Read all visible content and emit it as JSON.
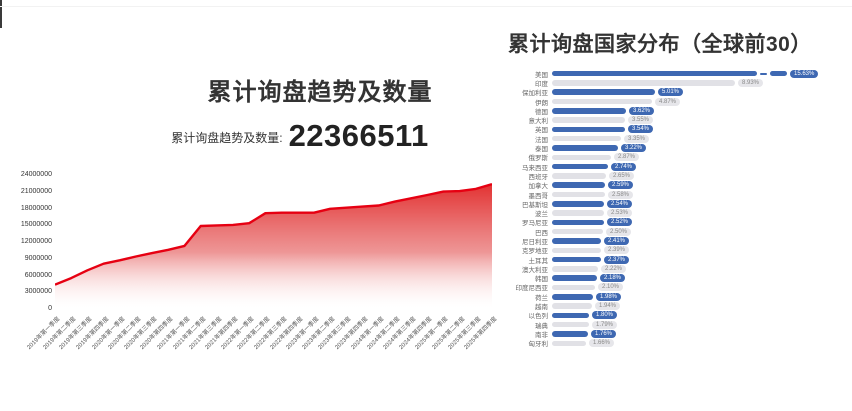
{
  "left_chart": {
    "title": "累计询盘趋势及数量",
    "stat_label": "累计询盘趋势及数量:",
    "stat_value": "22366511"
  },
  "right_chart": {
    "title": "累计询盘国家分布（全球前30）"
  },
  "colors": {
    "trend_line": "#e60012",
    "trend_fill_top": "#e02020",
    "bar_blue": "#3e68b2",
    "bar_gray": "#e1e1e6"
  },
  "chart_data": [
    {
      "type": "area",
      "title": "累计询盘趋势及数量",
      "xlabel": "",
      "ylabel": "",
      "ylim": [
        0,
        24000000
      ],
      "yticks": [
        "24000000",
        "21000000",
        "18000000",
        "15000000",
        "12000000",
        "9000000",
        "6000000",
        "3000000",
        "0"
      ],
      "x": [
        "2019年第一季度",
        "2019年第二季度",
        "2019年第三季度",
        "2019年第四季度",
        "2020年第一季度",
        "2020年第二季度",
        "2020年第三季度",
        "2020年第四季度",
        "2021年第一季度",
        "2021年第二季度",
        "2021年第三季度",
        "2021年第四季度",
        "2022年第一季度",
        "2022年第二季度",
        "2022年第三季度",
        "2022年第四季度",
        "2023年第一季度",
        "2023年第二季度",
        "2023年第三季度",
        "2023年第四季度",
        "2024年第一季度",
        "2024年第二季度",
        "2024年第三季度",
        "2024年第四季度",
        "2025年第一季度",
        "2025年第二季度",
        "2025年第三季度",
        "2025年第四季度"
      ],
      "values": [
        4200000,
        5400000,
        6800000,
        8000000,
        8600000,
        9300000,
        9900000,
        10500000,
        11200000,
        14800000,
        14900000,
        15000000,
        15300000,
        17100000,
        17200000,
        17200000,
        17200000,
        17900000,
        18100000,
        18300000,
        18500000,
        19200000,
        19800000,
        20400000,
        21000000,
        21100000,
        21500000,
        22366511
      ],
      "grid": false,
      "legend": false
    },
    {
      "type": "bar",
      "orientation": "horizontal",
      "title": "累计询盘国家分布（全球前30）",
      "unit": "%",
      "rows": [
        {
          "label": "美国",
          "value": 15.63,
          "display": "15.63%",
          "style": "blue",
          "axis_break": true
        },
        {
          "label": "印度",
          "value": 8.93,
          "display": "8.93%",
          "style": "gray"
        },
        {
          "label": "保加利亚",
          "value": 5.01,
          "display": "5.01%",
          "style": "blue"
        },
        {
          "label": "伊朗",
          "value": 4.87,
          "display": "4.87%",
          "style": "gray"
        },
        {
          "label": "德国",
          "value": 3.62,
          "display": "3.62%",
          "style": "blue"
        },
        {
          "label": "意大利",
          "value": 3.55,
          "display": "3.55%",
          "style": "gray"
        },
        {
          "label": "英国",
          "value": 3.54,
          "display": "3.54%",
          "style": "blue"
        },
        {
          "label": "法国",
          "value": 3.35,
          "display": "3.35%",
          "style": "gray"
        },
        {
          "label": "泰国",
          "value": 3.22,
          "display": "3.22%",
          "style": "blue"
        },
        {
          "label": "俄罗斯",
          "value": 2.87,
          "display": "2.87%",
          "style": "gray"
        },
        {
          "label": "马来西亚",
          "value": 2.74,
          "display": "2.74%",
          "style": "blue"
        },
        {
          "label": "西班牙",
          "value": 2.65,
          "display": "2.65%",
          "style": "gray"
        },
        {
          "label": "加拿大",
          "value": 2.59,
          "display": "2.59%",
          "style": "blue"
        },
        {
          "label": "墨西哥",
          "value": 2.58,
          "display": "2.58%",
          "style": "gray"
        },
        {
          "label": "巴基斯坦",
          "value": 2.54,
          "display": "2.54%",
          "style": "blue"
        },
        {
          "label": "波兰",
          "value": 2.53,
          "display": "2.53%",
          "style": "gray"
        },
        {
          "label": "罗马尼亚",
          "value": 2.52,
          "display": "2.52%",
          "style": "blue"
        },
        {
          "label": "巴西",
          "value": 2.5,
          "display": "2.50%",
          "style": "gray"
        },
        {
          "label": "尼日利亚",
          "value": 2.41,
          "display": "2.41%",
          "style": "blue"
        },
        {
          "label": "克罗地亚",
          "value": 2.39,
          "display": "2.39%",
          "style": "gray"
        },
        {
          "label": "土耳其",
          "value": 2.37,
          "display": "2.37%",
          "style": "blue"
        },
        {
          "label": "澳大利亚",
          "value": 2.22,
          "display": "2.22%",
          "style": "gray"
        },
        {
          "label": "韩国",
          "value": 2.18,
          "display": "2.18%",
          "style": "blue"
        },
        {
          "label": "印度尼西亚",
          "value": 2.1,
          "display": "2.10%",
          "style": "gray"
        },
        {
          "label": "荷兰",
          "value": 1.98,
          "display": "1.98%",
          "style": "blue"
        },
        {
          "label": "越南",
          "value": 1.94,
          "display": "1.94%",
          "style": "gray"
        },
        {
          "label": "以色列",
          "value": 1.8,
          "display": "1.80%",
          "style": "blue"
        },
        {
          "label": "瑞典",
          "value": 1.79,
          "display": "1.79%",
          "style": "gray"
        },
        {
          "label": "南非",
          "value": 1.76,
          "display": "1.76%",
          "style": "blue"
        },
        {
          "label": "匈牙利",
          "value": 1.66,
          "display": "1.66%",
          "style": "gray"
        }
      ],
      "legend": false
    }
  ]
}
